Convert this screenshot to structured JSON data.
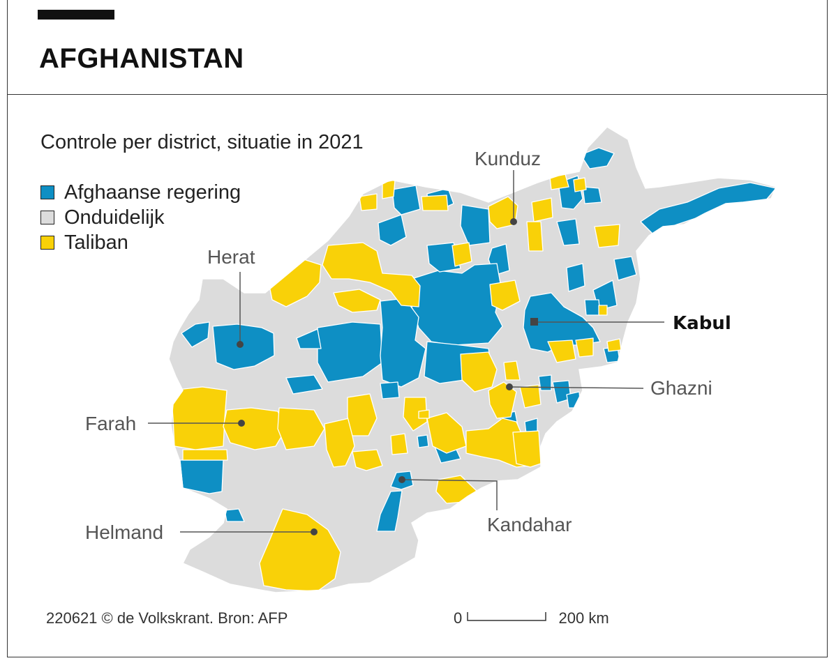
{
  "title": "AFGHANISTAN",
  "subtitle": "Controle per district, situatie in 2021",
  "legend": [
    {
      "label": "Afghaanse regering",
      "color": "#0e8fc4"
    },
    {
      "label": "Onduidelijk",
      "color": "#dcdcdc"
    },
    {
      "label": "Taliban",
      "color": "#f9d108"
    }
  ],
  "cities": {
    "kunduz": "Kunduz",
    "herat": "Herat",
    "kabul": "Kabul",
    "ghazni": "Ghazni",
    "farah": "Farah",
    "kandahar": "Kandahar",
    "helmand": "Helmand"
  },
  "credit": "220621 © de Volkskrant. Bron: AFP",
  "scale": {
    "start": "0",
    "end": "200 km"
  },
  "colors": {
    "government": "#0e8fc4",
    "unclear": "#dcdcdc",
    "taliban": "#f9d108",
    "border": "#ffffff"
  }
}
